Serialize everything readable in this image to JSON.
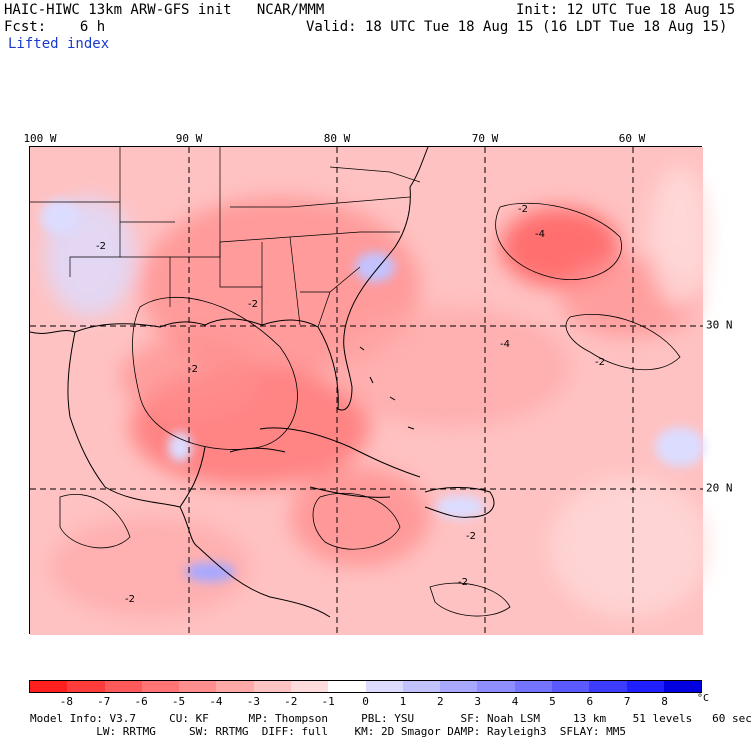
{
  "header": {
    "title": "HAIC-HIWC 13km ARW-GFS init   NCAR/MMM",
    "init": "Init: 12 UTC Tue 18 Aug 15",
    "fcst": "Fcst:    6 h",
    "valid": "Valid: 18 UTC Tue 18 Aug 15 (16 LDT Tue 18 Aug 15)",
    "field": "Lifted index"
  },
  "map": {
    "longitude_labels": [
      "100 W",
      "90 W",
      "80 W",
      "70 W",
      "60 W"
    ],
    "latitude_labels": [
      "30 N",
      "20 N"
    ],
    "contour_labels": [
      "-2",
      "-4",
      "-2",
      "-2",
      "-4",
      "-2",
      "-2",
      "-2",
      "-2",
      "-2"
    ]
  },
  "colorbar": {
    "colors": [
      "#ff1f1f",
      "#ff3c3c",
      "#ff5a5a",
      "#ff7474",
      "#ff8e8e",
      "#ffa8a8",
      "#ffc2c2",
      "#ffdcdc",
      "#ffffff",
      "#dcdcff",
      "#c2c2ff",
      "#a8a8ff",
      "#8e8eff",
      "#7474ff",
      "#5a5aff",
      "#3c3cff",
      "#1f1fff",
      "#0000e0"
    ],
    "labels": [
      "-8",
      "-7",
      "-6",
      "-5",
      "-4",
      "-3",
      "-2",
      "-1",
      "0",
      "1",
      "2",
      "3",
      "4",
      "5",
      "6",
      "7",
      "8"
    ],
    "unit": "°C"
  },
  "footer": {
    "line1": "Model Info: V3.7     CU: KF      MP: Thompson     PBL: YSU       SF: Noah LSM     13 km    51 levels   60 sec",
    "line2": "          LW: RRTMG     SW: RRTMG  DIFF: full    KM: 2D Smagor DAMP: Rayleigh3  SFLAY: MM5"
  }
}
